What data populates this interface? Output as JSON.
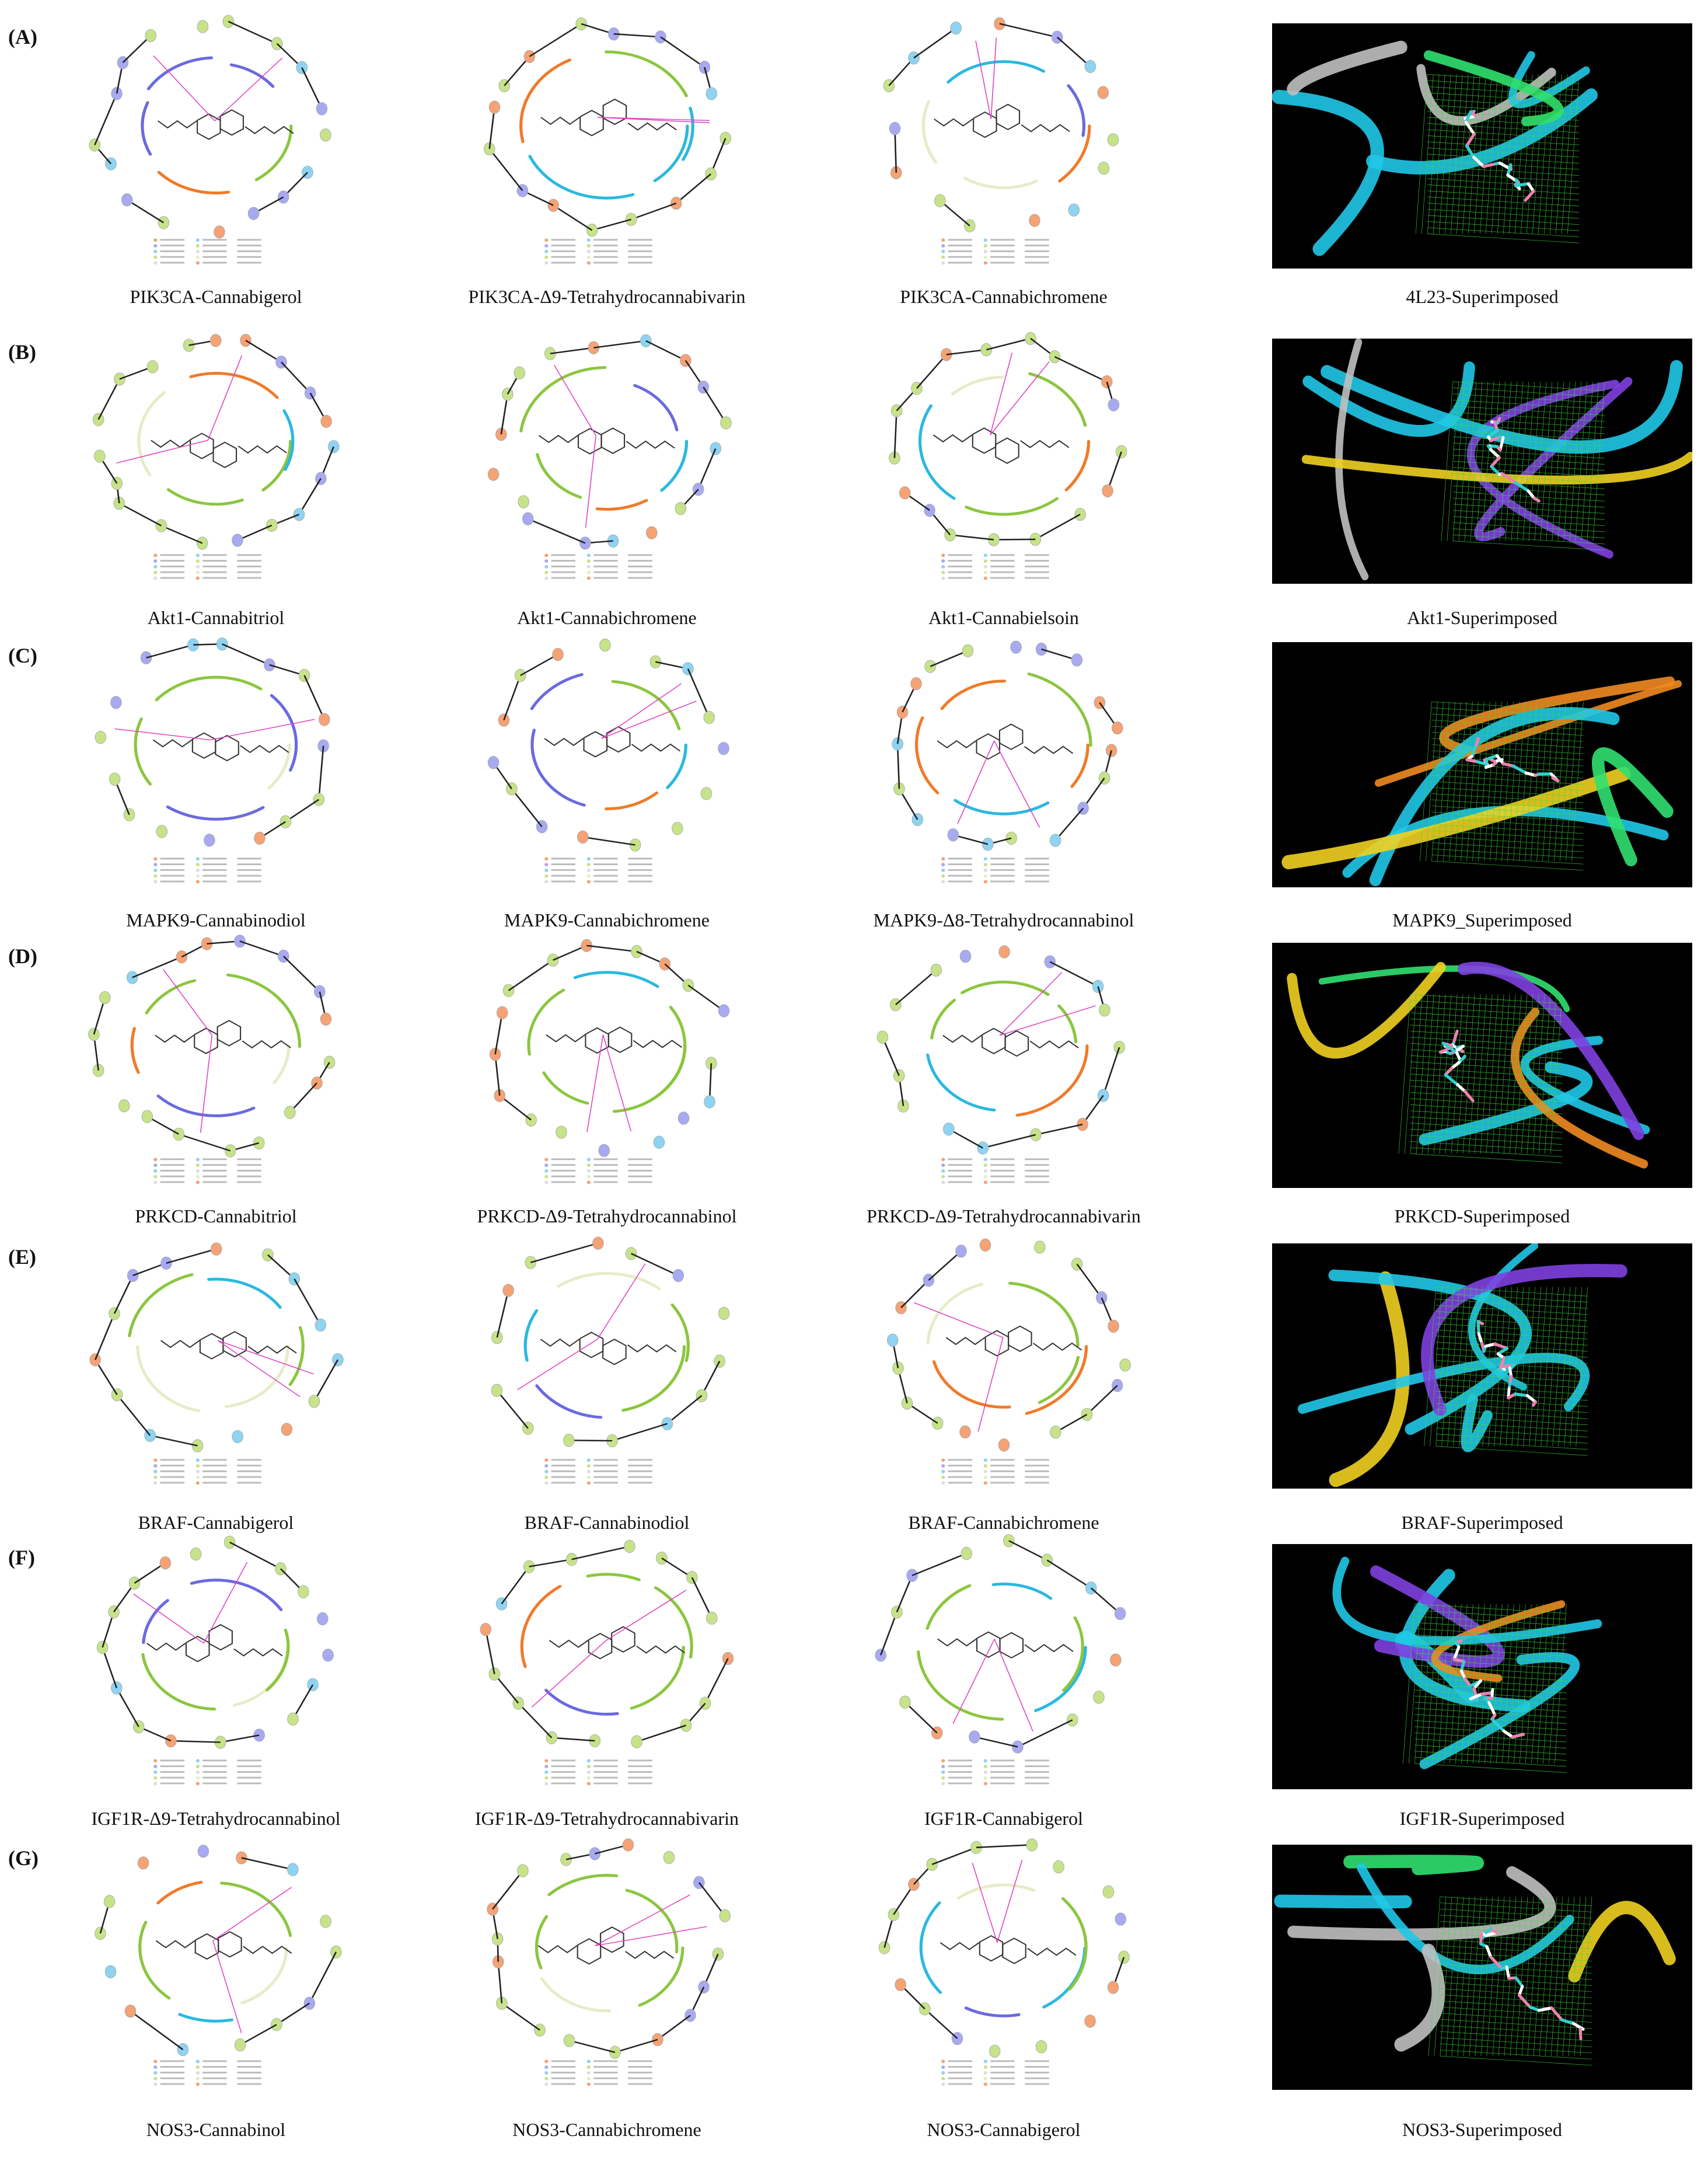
{
  "rows": [
    {
      "label": "(A)",
      "captions": [
        "PIK3CA-Cannabigerol",
        "PIK3CA-Δ9-Tetrahydrocannabivarin",
        "PIK3CA-Cannabichromene",
        "4L23-Superimposed"
      ]
    },
    {
      "label": "(B)",
      "captions": [
        "Akt1-Cannabitriol",
        "Akt1-Cannabichromene",
        "Akt1-Cannabielsoin",
        "Akt1-Superimposed"
      ]
    },
    {
      "label": "(C)",
      "captions": [
        "MAPK9-Cannabinodiol",
        "MAPK9-Cannabichromene",
        "MAPK9-Δ8-Tetrahydrocannabinol",
        "MAPK9_Superimposed"
      ]
    },
    {
      "label": "(D)",
      "captions": [
        "PRKCD-Cannabitriol",
        "PRKCD-Δ9-Tetrahydrocannabinol",
        "PRKCD-Δ9-Tetrahydrocannabivarin",
        "PRKCD-Superimposed"
      ]
    },
    {
      "label": "(E)",
      "captions": [
        "BRAF-Cannabigerol",
        "BRAF-Cannabinodiol",
        "BRAF-Cannabichromene",
        "BRAF-Superimposed"
      ]
    },
    {
      "label": "(F)",
      "captions": [
        "IGF1R-Δ9-Tetrahydrocannabinol",
        "IGF1R-Δ9-Tetrahydrocannabivarin",
        "IGF1R-Cannabigerol",
        "IGF1R-Superimposed"
      ]
    },
    {
      "label": "(G)",
      "captions": [
        "NOS3-Cannabinol",
        "NOS3-Cannabichromene",
        "NOS3-Cannabigerol",
        "NOS3-Superimposed"
      ]
    }
  ],
  "colors": {
    "pocket_green": "#8bc63f",
    "pocket_cyan": "#2bb8e0",
    "pocket_orange": "#f07a2a",
    "pocket_blue": "#6a6ae0",
    "residue_green": "#c8e28a",
    "residue_cyan": "#8fd3f0",
    "residue_orange": "#f5a275",
    "residue_blue": "#a9a9f0",
    "hbond_magenta": "#e040c0",
    "render_bg": "#000000",
    "mesh_green": "#3ddc3d",
    "ribbon_cyan": "#20c8e8",
    "ribbon_yellow": "#f0d020",
    "ligand_pink": "#f080b0"
  }
}
